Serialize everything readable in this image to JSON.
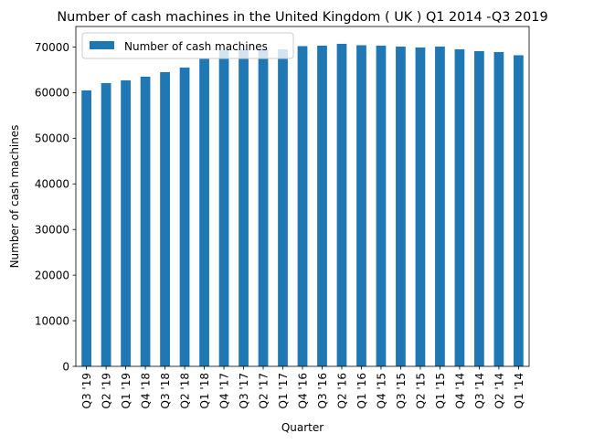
{
  "chart_data": {
    "type": "bar",
    "title": "Number of cash machines in the United Kingdom ( UK ) Q1 2014 -Q3 2019",
    "xlabel": "Quarter",
    "ylabel": "Number of cash machines",
    "ylim": [
      0,
      74500
    ],
    "yticks": [
      0,
      10000,
      20000,
      30000,
      40000,
      50000,
      60000,
      70000
    ],
    "grid": false,
    "legend_position": "top-left",
    "bar_color": "#1f77b4",
    "categories": [
      "Q3 '19",
      "Q2 '19",
      "Q1 '19",
      "Q4 '18",
      "Q3 '18",
      "Q2 '18",
      "Q1 '18",
      "Q4 '17",
      "Q3 '17",
      "Q2 '17",
      "Q1 '17",
      "Q4 '16",
      "Q3 '16",
      "Q2 '16",
      "Q1 '16",
      "Q4 '15",
      "Q3 '15",
      "Q2 '15",
      "Q1 '15",
      "Q4 '14",
      "Q3 '14",
      "Q2 '14",
      "Q1 '14"
    ],
    "series": [
      {
        "name": "Number of cash machines",
        "values": [
          60500,
          62100,
          62700,
          63500,
          64500,
          65500,
          67500,
          69300,
          69500,
          69500,
          69500,
          70200,
          70300,
          70700,
          70400,
          70300,
          70100,
          69900,
          70100,
          69500,
          69100,
          68900,
          68200
        ]
      }
    ]
  }
}
